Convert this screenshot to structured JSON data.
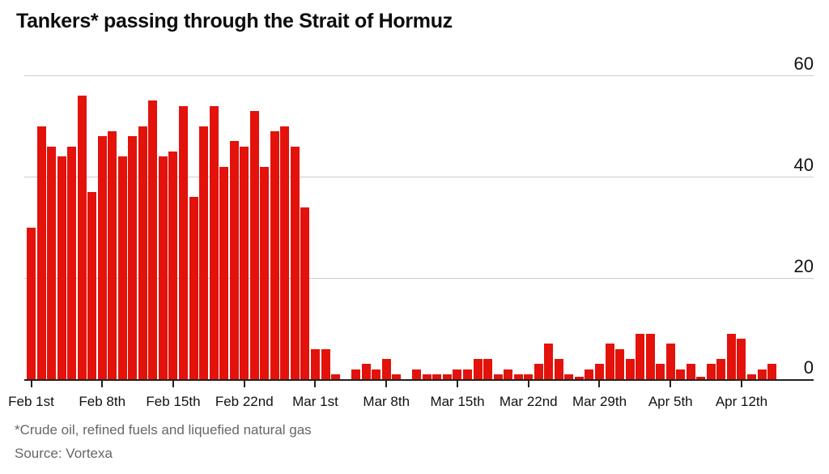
{
  "header": {
    "title": "Tankers* passing through the Strait of Hormuz"
  },
  "footer": {
    "footnote": "*Crude oil, refined fuels and liquefied natural gas",
    "source": "Source: Vortexa"
  },
  "chart_data": {
    "type": "bar",
    "title": "Tankers* passing through the Strait of Hormuz",
    "xlabel": "",
    "ylabel": "",
    "ylim": [
      0,
      60
    ],
    "y_ticks": [
      0,
      20,
      40,
      60
    ],
    "grid": "horizontal",
    "legend": "none",
    "bar_color": "#e3120b",
    "grid_color": "#cccccc",
    "axis_color": "#222222",
    "x": [
      "Feb 1",
      "Feb 2",
      "Feb 3",
      "Feb 4",
      "Feb 5",
      "Feb 6",
      "Feb 7",
      "Feb 8",
      "Feb 9",
      "Feb 10",
      "Feb 11",
      "Feb 12",
      "Feb 13",
      "Feb 14",
      "Feb 15",
      "Feb 16",
      "Feb 17",
      "Feb 18",
      "Feb 19",
      "Feb 20",
      "Feb 21",
      "Feb 22",
      "Feb 23",
      "Feb 24",
      "Feb 25",
      "Feb 26",
      "Feb 27",
      "Feb 28",
      "Mar 1",
      "Mar 2",
      "Mar 3",
      "Mar 4",
      "Mar 5",
      "Mar 6",
      "Mar 7",
      "Mar 8",
      "Mar 9",
      "Mar 10",
      "Mar 11",
      "Mar 12",
      "Mar 13",
      "Mar 14",
      "Mar 15",
      "Mar 16",
      "Mar 17",
      "Mar 18",
      "Mar 19",
      "Mar 20",
      "Mar 21",
      "Mar 22",
      "Mar 23",
      "Mar 24",
      "Mar 25",
      "Mar 26",
      "Mar 27",
      "Mar 28",
      "Mar 29",
      "Mar 30",
      "Mar 31",
      "Apr 1",
      "Apr 2",
      "Apr 3",
      "Apr 4",
      "Apr 5",
      "Apr 6",
      "Apr 7",
      "Apr 8",
      "Apr 9",
      "Apr 10",
      "Apr 11",
      "Apr 12",
      "Apr 13",
      "Apr 14",
      "Apr 15"
    ],
    "values": [
      30,
      50,
      46,
      44,
      46,
      56,
      37,
      48,
      49,
      44,
      48,
      50,
      55,
      44,
      45,
      54,
      36,
      50,
      54,
      42,
      47,
      46,
      53,
      42,
      49,
      50,
      46,
      34,
      6,
      6,
      1,
      0,
      2,
      3,
      2,
      4,
      1,
      0,
      2,
      1,
      1,
      1,
      2,
      2,
      4,
      4,
      1,
      2,
      1,
      1,
      3,
      7,
      4,
      1,
      0.5,
      2,
      3,
      7,
      6,
      4,
      9,
      9,
      3,
      7,
      2,
      3,
      0.5,
      3,
      4,
      9,
      8,
      1,
      2,
      3
    ],
    "x_tick_labels": [
      "Feb 1st",
      "Feb 8th",
      "Feb 15th",
      "Feb 22nd",
      "Mar 1st",
      "Mar 8th",
      "Mar 15th",
      "Mar 22nd",
      "Mar 29th",
      "Apr 5th",
      "Apr 12th"
    ],
    "x_tick_indices": [
      0,
      7,
      14,
      21,
      28,
      35,
      42,
      49,
      56,
      63,
      70
    ]
  }
}
